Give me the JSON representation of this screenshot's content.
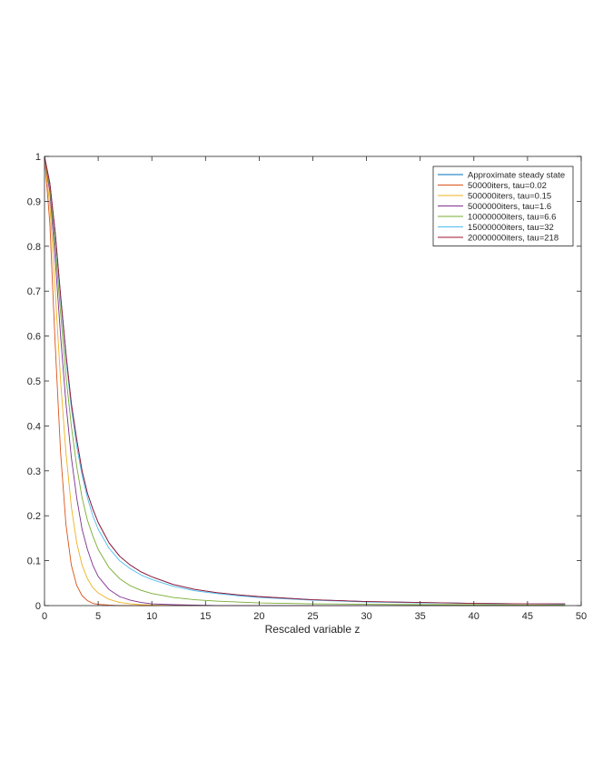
{
  "chart_data": {
    "type": "line",
    "title": "",
    "xlabel": "Rescaled variable z",
    "ylabel": "",
    "xlim": [
      0,
      50
    ],
    "ylim": [
      0,
      1
    ],
    "x_ticks": [
      0,
      5,
      10,
      15,
      20,
      25,
      30,
      35,
      40,
      45,
      50
    ],
    "y_ticks": [
      0,
      0.1,
      0.2,
      0.3,
      0.4,
      0.5,
      0.6,
      0.7,
      0.8,
      0.9,
      1
    ],
    "x_tick_labels": [
      "0",
      "5",
      "10",
      "15",
      "20",
      "25",
      "30",
      "35",
      "40",
      "45",
      "50"
    ],
    "y_tick_labels": [
      "0",
      "0.1",
      "0.2",
      "0.3",
      "0.4",
      "0.5",
      "0.6",
      "0.7",
      "0.8",
      "0.9",
      "1"
    ],
    "grid": false,
    "box": true,
    "legend_position": "top-right",
    "x": [
      0,
      0.5,
      1,
      1.5,
      2,
      2.5,
      3,
      3.5,
      4,
      4.5,
      5,
      6,
      7,
      8,
      9,
      10,
      12,
      14,
      16,
      18,
      20,
      25,
      30,
      35,
      40,
      45,
      48.5
    ],
    "series": [
      {
        "name": "Approximate steady state",
        "color": "#0072BD",
        "values": [
          1,
          0.94,
          0.83,
          0.69,
          0.56,
          0.45,
          0.37,
          0.3,
          0.25,
          0.215,
          0.185,
          0.14,
          0.11,
          0.09,
          0.075,
          0.064,
          0.047,
          0.036,
          0.029,
          0.024,
          0.02,
          0.013,
          0.009,
          0.007,
          0.005,
          0.004,
          0.004
        ]
      },
      {
        "name": "50000iters, tau=0.02",
        "color": "#D95319",
        "values": [
          1,
          0.85,
          0.58,
          0.34,
          0.18,
          0.09,
          0.045,
          0.022,
          0.011,
          0.005,
          0.003,
          0.001,
          0,
          0,
          0,
          0,
          0,
          0,
          0,
          0,
          0,
          0,
          0,
          0,
          0,
          0,
          0
        ]
      },
      {
        "name": "500000iters, tau=0.15",
        "color": "#EDB120",
        "values": [
          1,
          0.89,
          0.7,
          0.5,
          0.34,
          0.22,
          0.14,
          0.09,
          0.06,
          0.04,
          0.028,
          0.014,
          0.007,
          0.004,
          0.002,
          0.001,
          0,
          0,
          0,
          0,
          0,
          0,
          0,
          0,
          0,
          0,
          0
        ]
      },
      {
        "name": "5000000iters, tau=1.6",
        "color": "#7E2F8E",
        "values": [
          1,
          0.92,
          0.77,
          0.6,
          0.45,
          0.33,
          0.24,
          0.17,
          0.125,
          0.09,
          0.065,
          0.036,
          0.02,
          0.012,
          0.007,
          0.004,
          0.002,
          0.001,
          0,
          0,
          0,
          0,
          0,
          0,
          0,
          0,
          0
        ]
      },
      {
        "name": "10000000iters, tau=6.6",
        "color": "#77AC30",
        "values": [
          1,
          0.93,
          0.8,
          0.65,
          0.51,
          0.4,
          0.31,
          0.24,
          0.19,
          0.155,
          0.125,
          0.085,
          0.06,
          0.044,
          0.034,
          0.027,
          0.018,
          0.013,
          0.01,
          0.008,
          0.006,
          0.004,
          0.003,
          0.002,
          0.002,
          0.001,
          0.001
        ]
      },
      {
        "name": "15000000iters, tau=32",
        "color": "#4DBEEE",
        "values": [
          1,
          0.94,
          0.82,
          0.68,
          0.55,
          0.44,
          0.355,
          0.29,
          0.24,
          0.2,
          0.17,
          0.128,
          0.1,
          0.082,
          0.068,
          0.058,
          0.043,
          0.033,
          0.027,
          0.022,
          0.018,
          0.012,
          0.008,
          0.006,
          0.005,
          0.004,
          0.003
        ]
      },
      {
        "name": "20000000iters, tau=218",
        "color": "#A2142F",
        "values": [
          1,
          0.94,
          0.83,
          0.69,
          0.56,
          0.45,
          0.37,
          0.3,
          0.25,
          0.215,
          0.185,
          0.14,
          0.11,
          0.09,
          0.075,
          0.064,
          0.047,
          0.036,
          0.029,
          0.024,
          0.02,
          0.013,
          0.009,
          0.007,
          0.005,
          0.004,
          0.004
        ]
      }
    ]
  }
}
